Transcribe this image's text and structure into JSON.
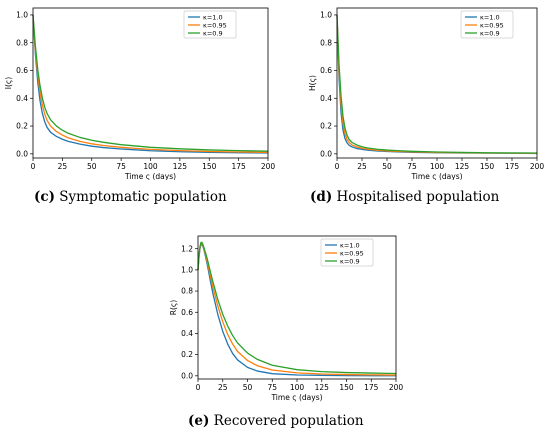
{
  "chart_data": [
    {
      "type": "line",
      "xlabel": "Time ς (days)",
      "ylabel": "I(ς)",
      "xlim": [
        0,
        200
      ],
      "ylim": [
        -0.03,
        1.05
      ],
      "xticks": [
        0,
        25,
        50,
        75,
        100,
        125,
        150,
        175,
        200
      ],
      "yticks": [
        0.0,
        0.2,
        0.4,
        0.6,
        0.8,
        1.0
      ],
      "legend_position": "top-right",
      "x": [
        0,
        2,
        4,
        6,
        8,
        10,
        12,
        15,
        20,
        25,
        30,
        40,
        50,
        60,
        75,
        100,
        125,
        150,
        175,
        200
      ],
      "series": [
        {
          "name": "κ=1.0",
          "color": "#1f77b4",
          "values": [
            1.0,
            0.72,
            0.52,
            0.38,
            0.29,
            0.23,
            0.19,
            0.155,
            0.125,
            0.105,
            0.09,
            0.07,
            0.055,
            0.045,
            0.035,
            0.022,
            0.015,
            0.011,
            0.008,
            0.006
          ]
        },
        {
          "name": "κ=0.95",
          "color": "#ff7f0e",
          "values": [
            1.0,
            0.75,
            0.57,
            0.44,
            0.35,
            0.285,
            0.24,
            0.2,
            0.16,
            0.135,
            0.115,
            0.09,
            0.072,
            0.06,
            0.047,
            0.032,
            0.023,
            0.017,
            0.013,
            0.01
          ]
        },
        {
          "name": "κ=0.9",
          "color": "#2ca02c",
          "values": [
            1.0,
            0.78,
            0.61,
            0.49,
            0.4,
            0.335,
            0.29,
            0.245,
            0.2,
            0.17,
            0.148,
            0.118,
            0.098,
            0.083,
            0.066,
            0.047,
            0.036,
            0.028,
            0.023,
            0.019
          ]
        }
      ]
    },
    {
      "type": "line",
      "xlabel": "Time ς (days)",
      "ylabel": "H(ς)",
      "xlim": [
        0,
        200
      ],
      "ylim": [
        -0.03,
        1.05
      ],
      "xticks": [
        0,
        25,
        50,
        75,
        100,
        125,
        150,
        175,
        200
      ],
      "yticks": [
        0.0,
        0.2,
        0.4,
        0.6,
        0.8,
        1.0
      ],
      "legend_position": "top-right",
      "x": [
        0,
        2,
        4,
        6,
        8,
        10,
        12,
        15,
        20,
        25,
        30,
        40,
        50,
        60,
        75,
        100,
        125,
        150,
        175,
        200
      ],
      "series": [
        {
          "name": "κ=1.0",
          "color": "#1f77b4",
          "values": [
            1.0,
            0.55,
            0.3,
            0.17,
            0.11,
            0.08,
            0.062,
            0.05,
            0.038,
            0.032,
            0.027,
            0.021,
            0.017,
            0.014,
            0.011,
            0.008,
            0.006,
            0.005,
            0.004,
            0.003
          ]
        },
        {
          "name": "κ=0.95",
          "color": "#ff7f0e",
          "values": [
            1.0,
            0.6,
            0.36,
            0.22,
            0.145,
            0.105,
            0.082,
            0.064,
            0.049,
            0.04,
            0.034,
            0.026,
            0.021,
            0.018,
            0.014,
            0.01,
            0.008,
            0.006,
            0.005,
            0.004
          ]
        },
        {
          "name": "κ=0.9",
          "color": "#2ca02c",
          "values": [
            1.0,
            0.65,
            0.42,
            0.27,
            0.185,
            0.135,
            0.105,
            0.082,
            0.063,
            0.051,
            0.043,
            0.033,
            0.027,
            0.023,
            0.018,
            0.013,
            0.01,
            0.008,
            0.007,
            0.006
          ]
        }
      ]
    },
    {
      "type": "line",
      "xlabel": "Time ς (days)",
      "ylabel": "R(ς)",
      "xlim": [
        0,
        200
      ],
      "ylim": [
        -0.03,
        1.32
      ],
      "xticks": [
        0,
        25,
        50,
        75,
        100,
        125,
        150,
        175,
        200
      ],
      "yticks": [
        0.0,
        0.2,
        0.4,
        0.6,
        0.8,
        1.0,
        1.2
      ],
      "legend_position": "top-right",
      "x": [
        0,
        1,
        2,
        3,
        4,
        5,
        6,
        8,
        10,
        12,
        15,
        20,
        25,
        30,
        35,
        40,
        50,
        60,
        75,
        100,
        125,
        150,
        175,
        200
      ],
      "series": [
        {
          "name": "κ=1.0",
          "color": "#1f77b4",
          "values": [
            1.0,
            1.12,
            1.2,
            1.24,
            1.24,
            1.22,
            1.19,
            1.11,
            1.02,
            0.92,
            0.78,
            0.58,
            0.42,
            0.3,
            0.21,
            0.15,
            0.08,
            0.045,
            0.02,
            0.008,
            0.004,
            0.002,
            0.001,
            0.001
          ]
        },
        {
          "name": "κ=0.95",
          "color": "#ff7f0e",
          "values": [
            1.0,
            1.13,
            1.21,
            1.25,
            1.25,
            1.23,
            1.2,
            1.13,
            1.05,
            0.96,
            0.84,
            0.66,
            0.51,
            0.39,
            0.3,
            0.23,
            0.145,
            0.095,
            0.055,
            0.028,
            0.017,
            0.012,
            0.009,
            0.007
          ]
        },
        {
          "name": "κ=0.9",
          "color": "#2ca02c",
          "values": [
            1.0,
            1.14,
            1.22,
            1.26,
            1.26,
            1.24,
            1.21,
            1.15,
            1.08,
            1.0,
            0.89,
            0.72,
            0.58,
            0.47,
            0.38,
            0.31,
            0.215,
            0.155,
            0.1,
            0.058,
            0.04,
            0.031,
            0.026,
            0.022
          ]
        }
      ]
    }
  ],
  "captions": [
    {
      "letter": "(c)",
      "text": " Symptomatic population"
    },
    {
      "letter": "(d)",
      "text": " Hospitalised population"
    },
    {
      "letter": "(e)",
      "text": " Recovered population"
    }
  ]
}
